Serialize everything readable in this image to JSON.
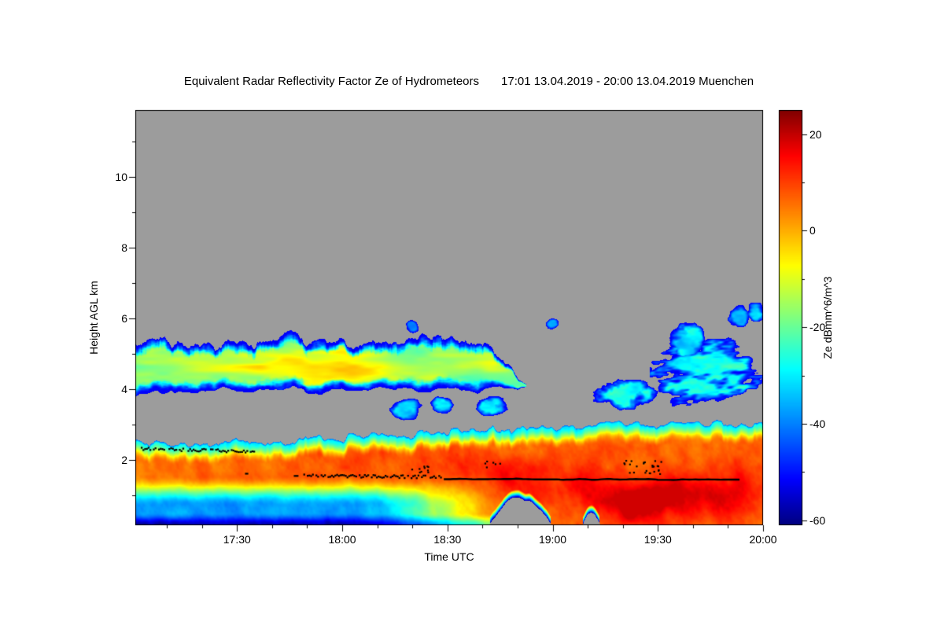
{
  "chart_data": {
    "type": "heatmap",
    "title": "Equivalent Radar Reflectivity Factor Ze of Hydrometeors",
    "period": "17:01 13.04.2019 - 20:00 13.04.2019 Muenchen",
    "xlabel": "Time UTC",
    "ylabel": "Height AGL km",
    "colorbar_label": "Ze dBmm^6/m^3",
    "x_start_min": 1021,
    "x_end_min": 1200,
    "x_ticks": [
      {
        "label": "17:30",
        "min": 1050
      },
      {
        "label": "18:00",
        "min": 1080
      },
      {
        "label": "18:30",
        "min": 1110
      },
      {
        "label": "19:00",
        "min": 1140
      },
      {
        "label": "19:30",
        "min": 1170
      },
      {
        "label": "20:00",
        "min": 1200
      }
    ],
    "x_minor_step_min": 10,
    "y_range_km": [
      0.15,
      11.9
    ],
    "y_ticks_km": [
      2,
      4,
      6,
      8,
      10
    ],
    "y_minor_step_km": 1,
    "z_range_db": [
      -61,
      25
    ],
    "z_ticks_db": [
      20,
      0,
      -20,
      -40,
      -60
    ],
    "z_minor_step_db": 10,
    "no_data_color": "#9c9c9c",
    "frame_color": "#000000",
    "colormap": [
      {
        "t": 0.0,
        "c": "#000080"
      },
      {
        "t": 0.11,
        "c": "#0000ff"
      },
      {
        "t": 0.375,
        "c": "#00ffff"
      },
      {
        "t": 0.625,
        "c": "#ffff00"
      },
      {
        "t": 0.89,
        "c": "#ff0000"
      },
      {
        "t": 1.0,
        "c": "#800000"
      }
    ],
    "cloud_deck": {
      "u0": 0.0,
      "u1": 0.635,
      "base_km": 3.95,
      "base_var": 0.3,
      "top_km": 5.3,
      "top_var": 1.0,
      "rough": 0.45,
      "core_db_min": -26,
      "core_db_amp": 24,
      "bright": {
        "u": 0.27,
        "du": 0.14,
        "h": 4.5,
        "dh": 0.38,
        "amp": 7
      },
      "seed": 11
    },
    "cloud_patches": [
      {
        "u0": 0.408,
        "u1": 0.458,
        "h0": 3.15,
        "h1": 3.75,
        "db": -30,
        "seed": 51
      },
      {
        "u0": 0.468,
        "u1": 0.508,
        "h0": 3.3,
        "h1": 3.78,
        "db": -32,
        "seed": 52
      },
      {
        "u0": 0.545,
        "u1": 0.592,
        "h0": 3.22,
        "h1": 3.82,
        "db": -30,
        "seed": 53
      },
      {
        "u0": 0.432,
        "u1": 0.452,
        "h0": 5.55,
        "h1": 6.0,
        "db": -36,
        "seed": 54
      },
      {
        "u0": 0.652,
        "u1": 0.675,
        "h0": 5.7,
        "h1": 6.0,
        "db": -38,
        "seed": 55
      },
      {
        "u0": 0.728,
        "u1": 0.828,
        "h0": 3.5,
        "h1": 4.28,
        "db": -27,
        "seed": 56
      },
      {
        "u0": 0.83,
        "u1": 1.005,
        "h0": 3.42,
        "h1": 5.3,
        "db": -25,
        "seed": 57,
        "streak": true
      },
      {
        "u0": 0.855,
        "u1": 0.905,
        "h0": 4.9,
        "h1": 5.9,
        "db": -30,
        "seed": 58
      },
      {
        "u0": 0.943,
        "u1": 0.978,
        "h0": 5.75,
        "h1": 6.4,
        "db": -32,
        "seed": 59
      },
      {
        "u0": 0.975,
        "u1": 1.005,
        "h0": 5.9,
        "h1": 6.45,
        "db": -34,
        "seed": 60
      }
    ],
    "precip": {
      "top_profile": [
        [
          0,
          2.5
        ],
        [
          0.06,
          2.42
        ],
        [
          0.13,
          2.45
        ],
        [
          0.22,
          2.52
        ],
        [
          0.32,
          2.62
        ],
        [
          0.42,
          2.72
        ],
        [
          0.52,
          2.82
        ],
        [
          0.62,
          2.95
        ],
        [
          0.72,
          3.0
        ],
        [
          0.85,
          3.05
        ],
        [
          1,
          3.05
        ]
      ],
      "top_rough": 0.22,
      "base_km": 0.15,
      "grad_db_low": -30,
      "grad_db_high": 6,
      "grad_depth": 0.55,
      "texture_amp": 9,
      "virga": {
        "u_full": 0.34,
        "u_none": 0.62,
        "att": 44,
        "h_start": 1.55,
        "h_depth": 0.85,
        "deep_att": 20,
        "deep_u0": 0.58,
        "deep_u1": 0.66
      },
      "notches": [
        {
          "u0": 0.562,
          "u1": 0.668,
          "depth": 0.75
        },
        {
          "u0": 0.712,
          "u1": 0.742,
          "depth": 0.3
        }
      ],
      "hot_spots": [
        {
          "u": 0.8,
          "h": 0.7,
          "du": 0.055,
          "dh": 0.55,
          "a": 16
        },
        {
          "u": 0.845,
          "h": 1.15,
          "du": 0.04,
          "dh": 0.5,
          "a": 10
        },
        {
          "u": 0.915,
          "h": 0.9,
          "du": 0.05,
          "dh": 0.6,
          "a": 9
        },
        {
          "u": 0.965,
          "h": 1.25,
          "du": 0.05,
          "dh": 0.8,
          "a": 7
        },
        {
          "u": 0.72,
          "h": 1.3,
          "du": 0.06,
          "dh": 0.7,
          "a": 8
        },
        {
          "u": 0.62,
          "h": 1.35,
          "du": 0.05,
          "dh": 0.6,
          "a": 6
        },
        {
          "u": 0.55,
          "h": 1.7,
          "du": 0.07,
          "dh": 0.6,
          "a": 5
        },
        {
          "u": 0.45,
          "h": 2.0,
          "du": 0.08,
          "dh": 0.5,
          "a": 3
        },
        {
          "u": 0.33,
          "h": 1.9,
          "du": 0.07,
          "dh": 0.5,
          "a": 3
        }
      ]
    },
    "melting_line": [
      {
        "style": "dotted",
        "u0": 0.006,
        "u1": 0.19,
        "h0": 2.34,
        "h1": 2.26
      },
      {
        "style": "dash",
        "u0": 0.175,
        "u1": 0.262,
        "h0": 1.62,
        "h1": 1.57
      },
      {
        "style": "dotted",
        "u0": 0.268,
        "u1": 0.488,
        "h0": 1.57,
        "h1": 1.54
      },
      {
        "style": "solid",
        "u0": 0.492,
        "u1": 0.968,
        "h0": 1.46,
        "h1": 1.44
      },
      {
        "style": "scatter",
        "u0": 0.438,
        "u1": 0.468,
        "h0": 1.62,
        "h1": 1.85,
        "n": 10
      },
      {
        "style": "scatter",
        "u0": 0.555,
        "u1": 0.585,
        "h0": 1.8,
        "h1": 1.98,
        "n": 6
      },
      {
        "style": "scatter",
        "u0": 0.77,
        "u1": 0.838,
        "h0": 1.58,
        "h1": 2.0,
        "n": 26
      }
    ]
  }
}
